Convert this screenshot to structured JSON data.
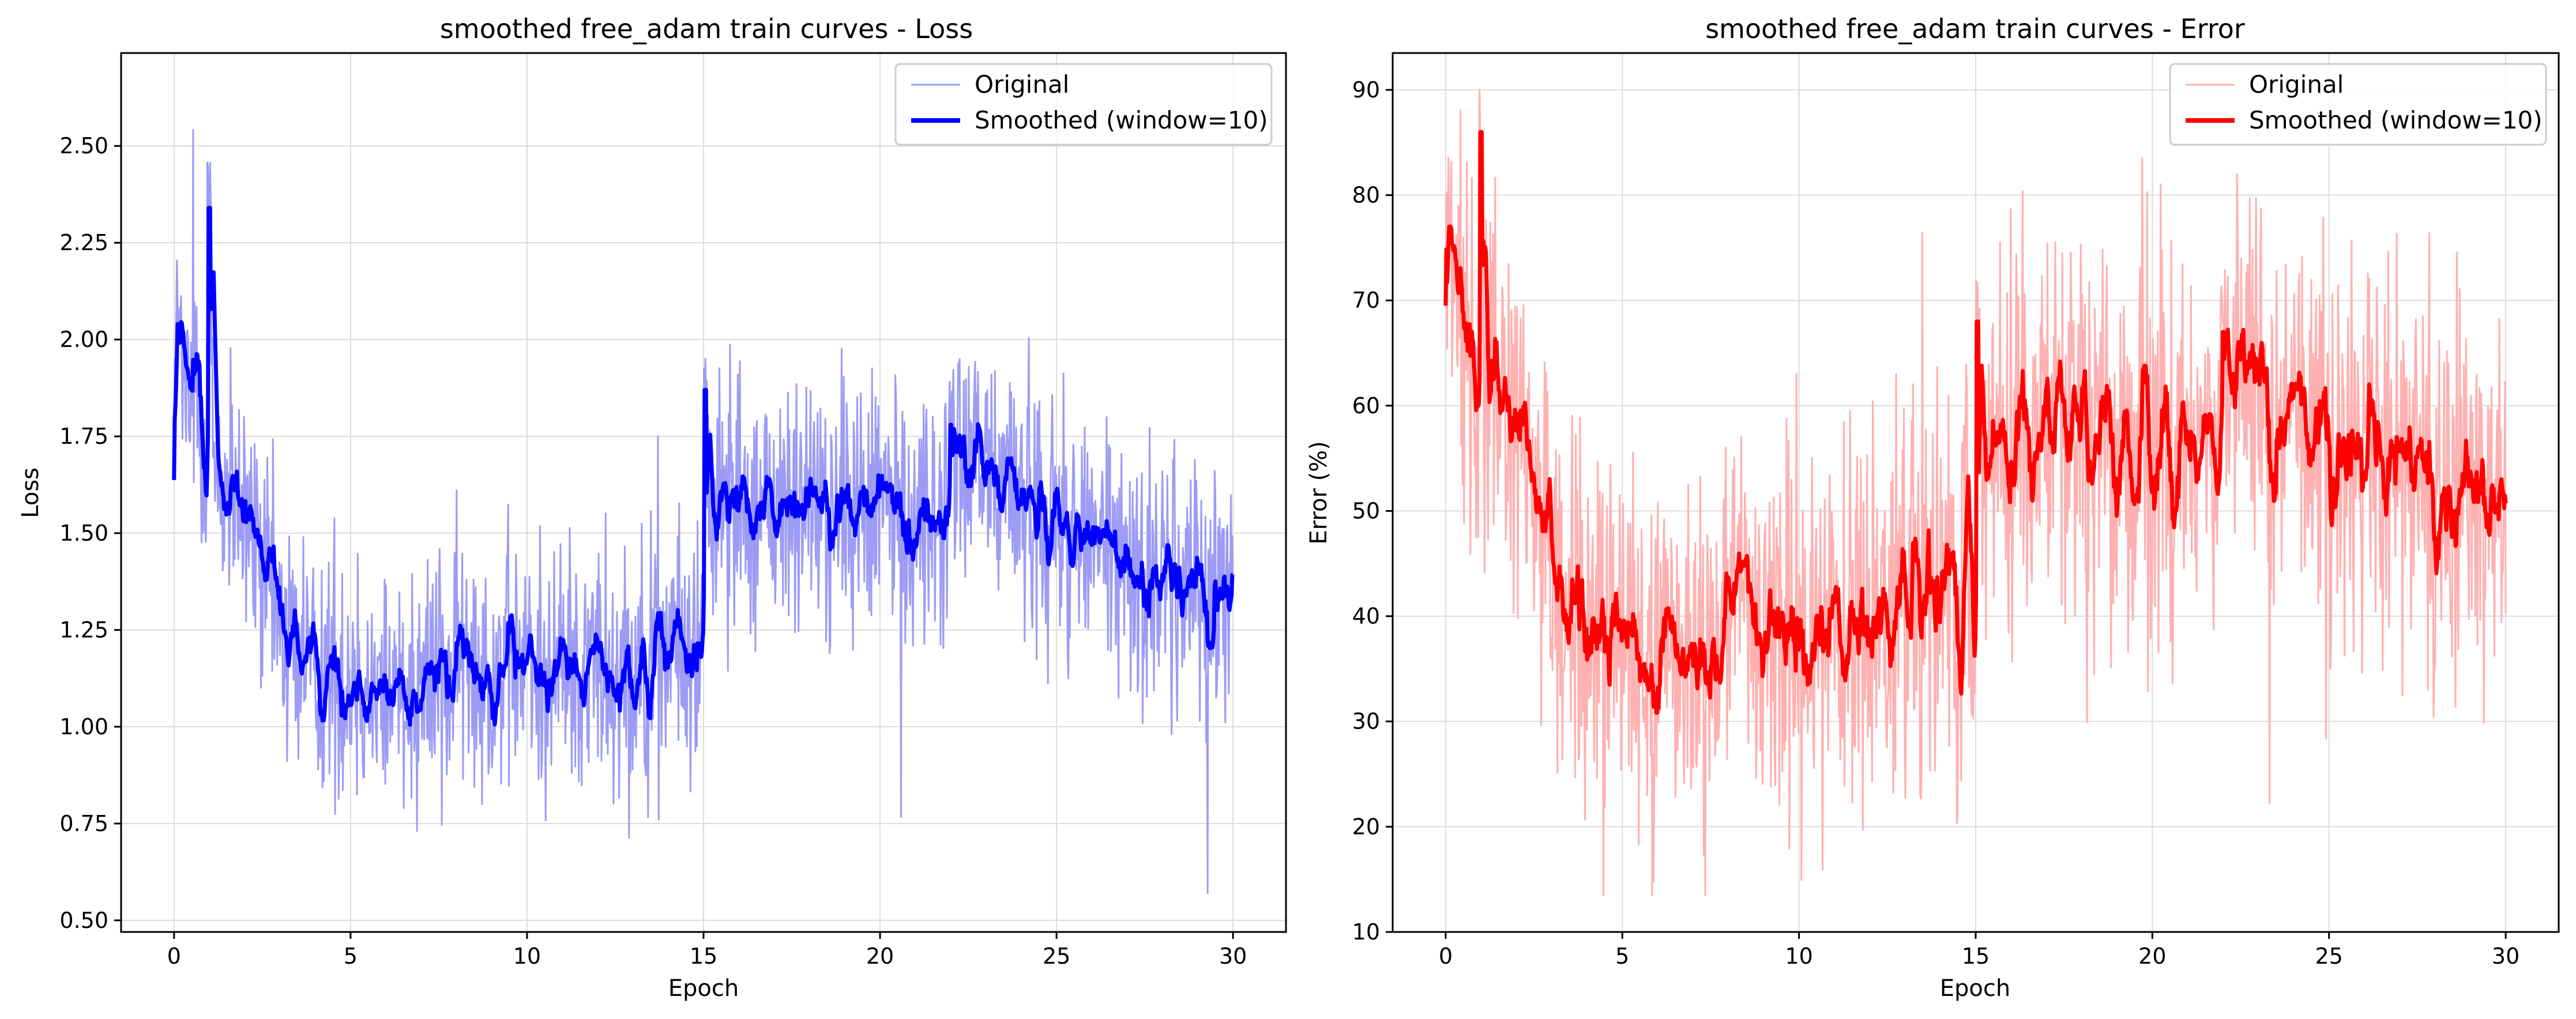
{
  "chart_data": [
    {
      "type": "line",
      "title": "smoothed free_adam train curves - Loss",
      "xlabel": "Epoch",
      "ylabel": "Loss",
      "xlim": [
        -1.5,
        31.5
      ],
      "ylim": [
        0.47,
        2.74
      ],
      "xticks": [
        0,
        5,
        10,
        15,
        20,
        25,
        30
      ],
      "yticks": [
        0.5,
        0.75,
        1.0,
        1.25,
        1.5,
        1.75,
        2.0,
        2.25,
        2.5
      ],
      "ytick_decimals": 2,
      "grid": true,
      "legend_position": "top-right",
      "colors": {
        "original": "#9c9cf5",
        "smoothed": "#0000ff"
      },
      "series": [
        {
          "name": "Original",
          "role": "original",
          "color": "#9c9cf5"
        },
        {
          "name": "Smoothed (window=10)",
          "role": "smoothed",
          "color": "#0000ff"
        }
      ],
      "x": [
        0,
        0.5,
        1,
        1.5,
        2,
        2.5,
        3,
        3.5,
        4,
        5,
        6,
        7,
        8,
        9,
        10,
        11,
        12,
        13,
        14,
        15,
        15.05,
        16,
        17,
        18,
        19,
        20,
        21,
        21.95,
        22.05,
        23,
        24,
        25,
        26,
        27,
        28,
        29,
        30
      ],
      "y": [
        1.95,
        1.8,
        1.72,
        1.58,
        1.52,
        1.4,
        1.27,
        1.2,
        1.15,
        1.13,
        1.1,
        1.14,
        1.16,
        1.17,
        1.15,
        1.16,
        1.17,
        1.18,
        1.19,
        1.2,
        1.6,
        1.6,
        1.57,
        1.56,
        1.55,
        1.56,
        1.55,
        1.54,
        1.68,
        1.67,
        1.6,
        1.53,
        1.46,
        1.41,
        1.38,
        1.37,
        1.35
      ],
      "spikes": [
        {
          "x": 1.0,
          "y": 2.34
        },
        {
          "x": 0.12,
          "y": 2.04
        },
        {
          "x": 15.05,
          "y": 1.87
        },
        {
          "x": 22.0,
          "y": 1.78
        }
      ],
      "original_noise": 0.17,
      "smoothed_noise": 0.06,
      "original_min": 0.57,
      "original_max": 2.61
    },
    {
      "type": "line",
      "title": "smoothed free_adam train curves - Error",
      "xlabel": "Epoch",
      "ylabel": "Error (%)",
      "xlim": [
        -1.5,
        31.5
      ],
      "ylim": [
        10,
        93.5
      ],
      "xticks": [
        0,
        5,
        10,
        15,
        20,
        25,
        30
      ],
      "yticks": [
        10,
        20,
        30,
        40,
        50,
        60,
        70,
        80,
        90
      ],
      "ytick_decimals": 0,
      "grid": true,
      "legend_position": "top-right",
      "colors": {
        "original": "#ffb0b0",
        "smoothed": "#ff0000"
      },
      "series": [
        {
          "name": "Original",
          "role": "original",
          "color": "#ffb0b0"
        },
        {
          "name": "Smoothed (window=10)",
          "role": "smoothed",
          "color": "#ff0000"
        }
      ],
      "x": [
        0,
        0.5,
        1,
        1.5,
        2,
        2.5,
        3,
        3.5,
        4,
        5,
        6,
        7,
        8,
        9,
        10,
        11,
        12,
        13,
        14,
        15,
        15.05,
        16,
        17,
        18,
        19,
        20,
        21,
        21.95,
        22.05,
        23,
        24,
        25,
        26,
        27,
        28,
        29,
        30
      ],
      "y": [
        72,
        68,
        65,
        60,
        56,
        50,
        43,
        40,
        38,
        38,
        37,
        37,
        38,
        39,
        38,
        38,
        39,
        40,
        40,
        41,
        58,
        58,
        58,
        57,
        57,
        56,
        56,
        55,
        63,
        62,
        60,
        57,
        54,
        53,
        52,
        52,
        51
      ],
      "spikes": [
        {
          "x": 1.0,
          "y": 86
        },
        {
          "x": 0.12,
          "y": 77
        },
        {
          "x": 15.05,
          "y": 68
        },
        {
          "x": 22.0,
          "y": 67
        }
      ],
      "original_noise": 9.5,
      "smoothed_noise": 3.0,
      "original_min": 13.5,
      "original_max": 90
    }
  ]
}
